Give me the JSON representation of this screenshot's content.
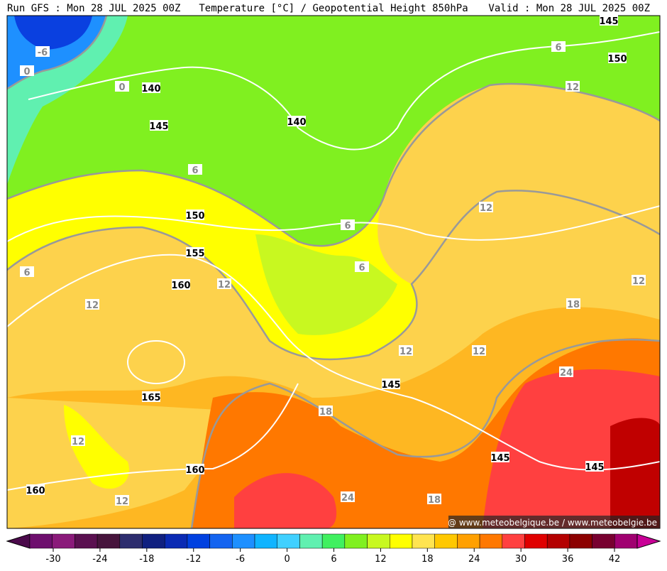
{
  "header": {
    "left": "Run GFS : Mon 28 JUL 2025 00Z",
    "center": "Temperature [°C] / Geopotential Height 850hPa",
    "right": "Valid : Mon 28 JUL 2025 00Z"
  },
  "height_labels": [
    "145",
    "150",
    "140",
    "145",
    "140",
    "150",
    "155",
    "160",
    "165",
    "160",
    "160",
    "145",
    "145",
    "145"
  ],
  "temp_labels": [
    "-6",
    "0",
    "0",
    "6",
    "12",
    "6",
    "6",
    "6",
    "12",
    "6",
    "12",
    "12",
    "12",
    "18",
    "12",
    "12",
    "24",
    "18",
    "12",
    "12",
    "24",
    "18"
  ],
  "credit": "@ www.meteobelgique.be / www.meteobelgie.be",
  "colorbar": {
    "ticks": [
      -30,
      -24,
      -18,
      -12,
      -6,
      0,
      6,
      12,
      18,
      24,
      30,
      36,
      42
    ],
    "colors": [
      "#4b0a4b",
      "#6e0f6e",
      "#8a1a7a",
      "#5a1050",
      "#46143c",
      "#2d2d6e",
      "#102080",
      "#0a2ab4",
      "#0040e0",
      "#1464f0",
      "#1e90ff",
      "#10b4ff",
      "#40d0ff",
      "#60f0b0",
      "#40f060",
      "#80f020",
      "#c8f820",
      "#ffff00",
      "#ffe450",
      "#ffc800",
      "#ffa000",
      "#ff7800",
      "#ff4040",
      "#e00000",
      "#b40000",
      "#8c0000",
      "#780030",
      "#a00070",
      "#c80096"
    ]
  }
}
